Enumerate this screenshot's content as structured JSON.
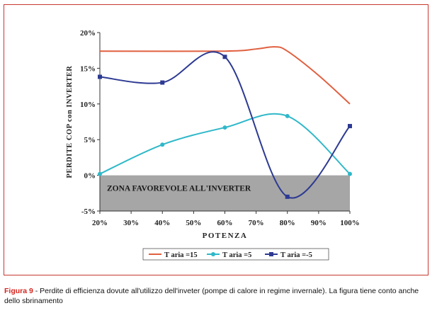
{
  "chart_data": {
    "type": "line",
    "title": "",
    "xlabel": "POTENZA",
    "ylabel": "PERDITE COP con INVERTER",
    "categories": [
      "20%",
      "30%",
      "40%",
      "50%",
      "60%",
      "70%",
      "80%",
      "90%",
      "100%"
    ],
    "x_values": [
      20,
      30,
      40,
      50,
      60,
      70,
      80,
      90,
      100
    ],
    "xlim": [
      20,
      100
    ],
    "ylim": [
      -5,
      20
    ],
    "yticks": [
      -5,
      0,
      5,
      10,
      15,
      20
    ],
    "ytick_labels": [
      "-5%",
      "0%",
      "5%",
      "10%",
      "15%",
      "20%"
    ],
    "grid": false,
    "legend_position": "bottom",
    "series": [
      {
        "name": "T aria =15",
        "color": "#e06040",
        "marker": "none",
        "points": [
          [
            20,
            17.4
          ],
          [
            60,
            17.4
          ],
          [
            70,
            17.7
          ],
          [
            76,
            18.0
          ],
          [
            80,
            17.4
          ],
          [
            90,
            14.0
          ],
          [
            100,
            10.0
          ]
        ]
      },
      {
        "name": "T aria =5",
        "color": "#2fb8c9",
        "marker": "circle",
        "points": [
          [
            20,
            0.2
          ],
          [
            40,
            4.3
          ],
          [
            60,
            6.7
          ],
          [
            80,
            8.3
          ],
          [
            100,
            0.2
          ]
        ]
      },
      {
        "name": "T aria =-5",
        "color": "#2d3a92",
        "marker": "square",
        "points": [
          [
            20,
            13.8
          ],
          [
            40,
            13.0
          ],
          [
            60,
            16.6
          ],
          [
            80,
            -3.0
          ],
          [
            100,
            6.9
          ]
        ]
      }
    ],
    "region": {
      "label": "ZONA FAVOREVOLE ALL'INVERTER",
      "y_from": -5,
      "y_to": 0,
      "color": "#a6a6a6"
    }
  },
  "caption": {
    "label": "Figura 9",
    "text": " - Perdite di efficienza dovute all'utilizzo dell'inveter (pompe di calore in regime invernale). La figura tiene conto anche dello sbrinamento"
  }
}
